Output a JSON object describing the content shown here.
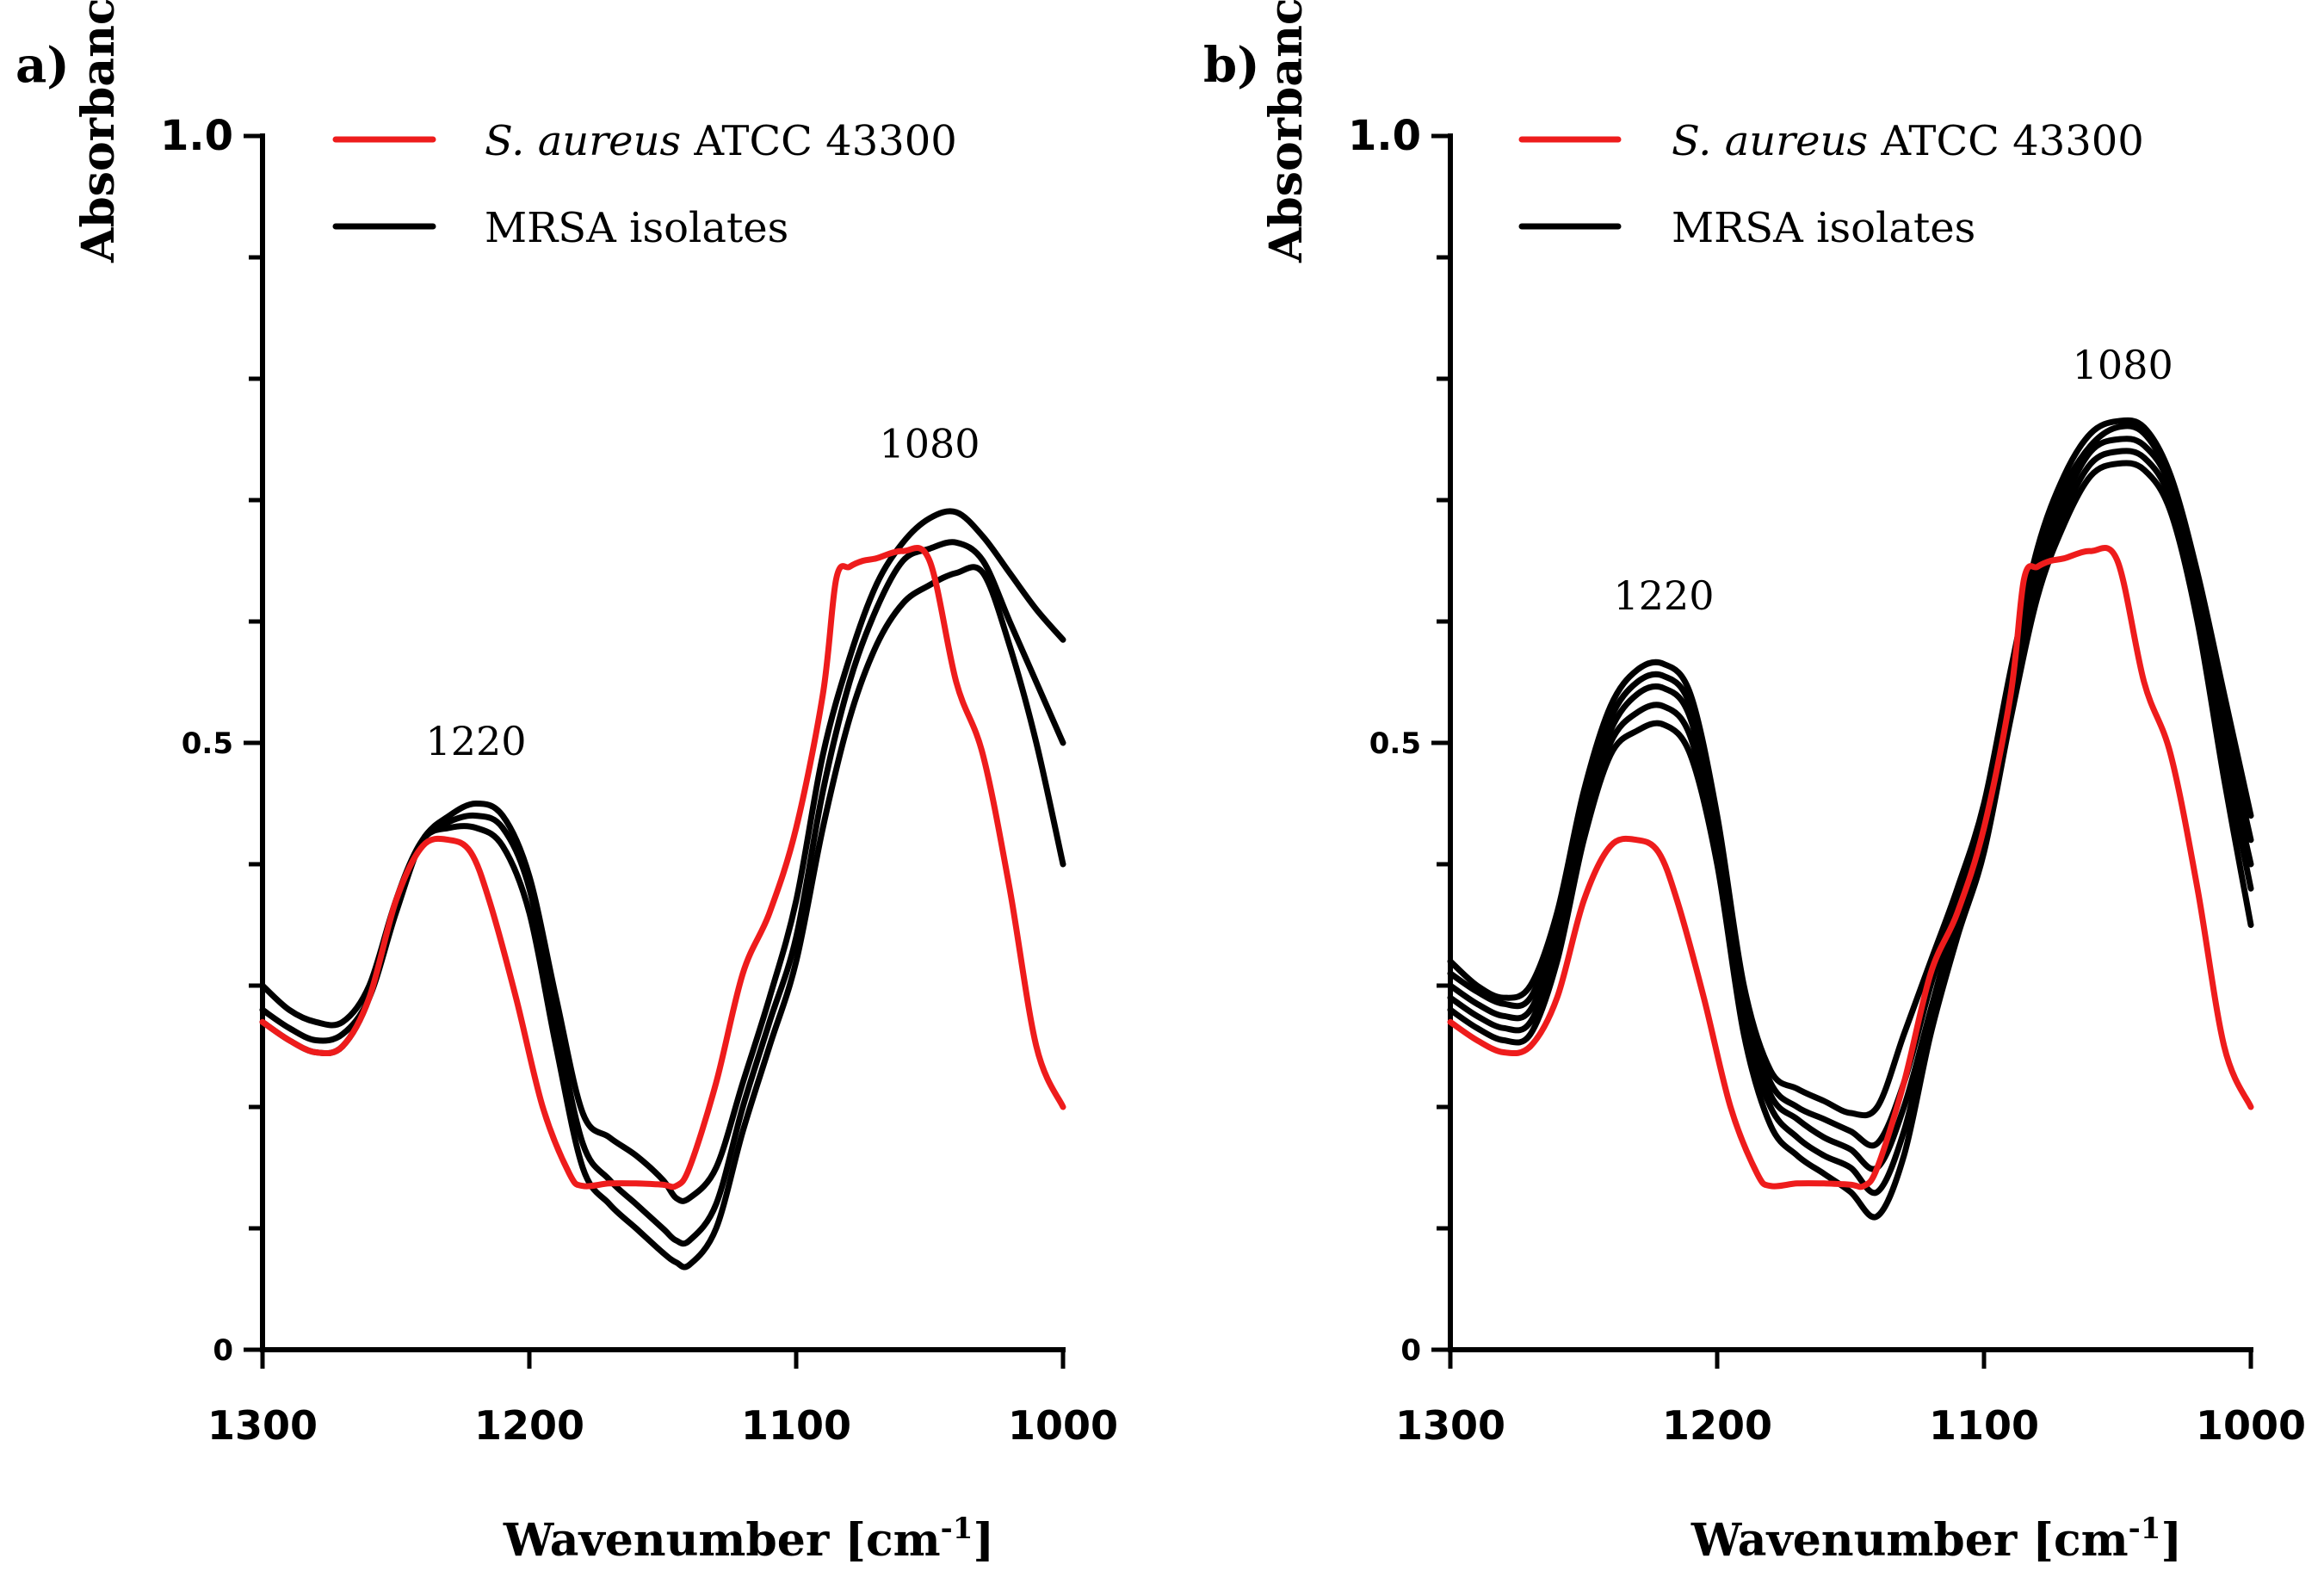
{
  "colors": {
    "reference": "#ee1c1c",
    "isolates": "#000000"
  },
  "chart_data": [
    {
      "type": "line",
      "panel_label": "a)",
      "xlabel": "Wavenumber [cm",
      "xlabel_sup": "-1",
      "xlabel_close": "]",
      "ylabel": "Absorbance",
      "xlim": [
        1300,
        1000
      ],
      "ylim": [
        0,
        1.0
      ],
      "x_ticks": [
        1300,
        1200,
        1100,
        1000
      ],
      "x_tick_labels": [
        "1300",
        "1200",
        "1100",
        "1000"
      ],
      "y_ticks_labeled": [
        {
          "value": 0,
          "label": "0"
        },
        {
          "value": 0.5,
          "label": "0.5"
        },
        {
          "value": 1.0,
          "label": "1.0"
        }
      ],
      "y_minor_step": 0.1,
      "legend": {
        "position": "top",
        "entries": [
          {
            "italic": "S. aureus",
            "text": " ATCC 43300",
            "color_key": "reference"
          },
          {
            "italic": "",
            "text": "MRSA isolates",
            "color_key": "isolates"
          }
        ]
      },
      "annotations": [
        {
          "text": "1220",
          "x": 1220,
          "y": 0.49
        },
        {
          "text": "1080",
          "x": 1050,
          "y": 0.735
        }
      ],
      "series": [
        {
          "name": "S. aureus ATCC 43300",
          "color_key": "reference",
          "x": [
            1300,
            1290,
            1280,
            1270,
            1260,
            1250,
            1240,
            1230,
            1222,
            1215,
            1205,
            1195,
            1185,
            1180,
            1170,
            1160,
            1150,
            1145,
            1140,
            1130,
            1120,
            1110,
            1100,
            1090,
            1085,
            1080,
            1075,
            1070,
            1060,
            1050,
            1040,
            1030,
            1020,
            1010,
            1000
          ],
          "y": [
            0.27,
            0.255,
            0.245,
            0.25,
            0.29,
            0.37,
            0.415,
            0.42,
            0.41,
            0.37,
            0.29,
            0.2,
            0.145,
            0.135,
            0.137,
            0.137,
            0.136,
            0.135,
            0.15,
            0.22,
            0.31,
            0.36,
            0.43,
            0.54,
            0.635,
            0.645,
            0.65,
            0.652,
            0.658,
            0.65,
            0.55,
            0.49,
            0.38,
            0.25,
            0.2
          ]
        },
        {
          "name": "MRSA isolate 1",
          "color_key": "isolates",
          "x": [
            1300,
            1290,
            1280,
            1270,
            1260,
            1250,
            1240,
            1230,
            1220,
            1210,
            1200,
            1190,
            1180,
            1170,
            1160,
            1150,
            1145,
            1140,
            1130,
            1120,
            1110,
            1100,
            1090,
            1080,
            1070,
            1060,
            1050,
            1040,
            1030,
            1020,
            1010,
            1000
          ],
          "y": [
            0.3,
            0.28,
            0.27,
            0.27,
            0.3,
            0.37,
            0.42,
            0.44,
            0.45,
            0.44,
            0.39,
            0.29,
            0.195,
            0.175,
            0.16,
            0.14,
            0.125,
            0.125,
            0.15,
            0.22,
            0.29,
            0.37,
            0.49,
            0.57,
            0.63,
            0.665,
            0.685,
            0.69,
            0.67,
            0.64,
            0.61,
            0.585
          ]
        },
        {
          "name": "MRSA isolate 2",
          "color_key": "isolates",
          "x": [
            1300,
            1290,
            1280,
            1270,
            1260,
            1250,
            1240,
            1230,
            1220,
            1210,
            1200,
            1190,
            1180,
            1170,
            1160,
            1150,
            1145,
            1140,
            1130,
            1120,
            1110,
            1100,
            1090,
            1080,
            1070,
            1060,
            1050,
            1040,
            1030,
            1020,
            1010,
            1000
          ],
          "y": [
            0.28,
            0.265,
            0.255,
            0.26,
            0.29,
            0.36,
            0.42,
            0.435,
            0.44,
            0.43,
            0.38,
            0.27,
            0.17,
            0.14,
            0.12,
            0.1,
            0.09,
            0.09,
            0.12,
            0.2,
            0.27,
            0.34,
            0.46,
            0.55,
            0.61,
            0.65,
            0.66,
            0.665,
            0.65,
            0.6,
            0.55,
            0.5
          ]
        },
        {
          "name": "MRSA isolate 3",
          "color_key": "isolates",
          "x": [
            1300,
            1290,
            1280,
            1270,
            1260,
            1250,
            1240,
            1230,
            1220,
            1210,
            1200,
            1190,
            1180,
            1170,
            1160,
            1150,
            1145,
            1140,
            1130,
            1120,
            1110,
            1100,
            1090,
            1080,
            1070,
            1060,
            1050,
            1040,
            1030,
            1020,
            1010,
            1000
          ],
          "y": [
            0.27,
            0.255,
            0.245,
            0.25,
            0.29,
            0.37,
            0.42,
            0.43,
            0.43,
            0.415,
            0.36,
            0.25,
            0.15,
            0.12,
            0.1,
            0.08,
            0.072,
            0.07,
            0.1,
            0.18,
            0.25,
            0.32,
            0.43,
            0.52,
            0.58,
            0.615,
            0.63,
            0.64,
            0.64,
            0.58,
            0.5,
            0.4
          ]
        }
      ]
    },
    {
      "type": "line",
      "panel_label": "b)",
      "xlabel": "Wavenumber [cm",
      "xlabel_sup": "-1",
      "xlabel_close": "]",
      "ylabel": "Absorbance",
      "xlim": [
        1300,
        1000
      ],
      "ylim": [
        0,
        1.0
      ],
      "x_ticks": [
        1300,
        1200,
        1100,
        1000
      ],
      "x_tick_labels": [
        "1300",
        "1200",
        "1100",
        "1000"
      ],
      "y_ticks_labeled": [
        {
          "value": 0,
          "label": "0"
        },
        {
          "value": 0.5,
          "label": "0.5"
        },
        {
          "value": 1.0,
          "label": "1.0"
        }
      ],
      "y_minor_step": 0.1,
      "legend": {
        "position": "top",
        "entries": [
          {
            "italic": "S. aureus",
            "text": " ATCC 43300",
            "color_key": "reference"
          },
          {
            "italic": "",
            "text": "MRSA isolates",
            "color_key": "isolates"
          }
        ]
      },
      "annotations": [
        {
          "text": "1220",
          "x": 1220,
          "y": 0.61
        },
        {
          "text": "1080",
          "x": 1048,
          "y": 0.8
        }
      ],
      "series": [
        {
          "name": "S. aureus ATCC 43300",
          "color_key": "reference",
          "x": [
            1300,
            1290,
            1280,
            1270,
            1260,
            1250,
            1240,
            1230,
            1222,
            1215,
            1205,
            1195,
            1185,
            1180,
            1170,
            1160,
            1150,
            1145,
            1140,
            1130,
            1120,
            1110,
            1100,
            1090,
            1085,
            1080,
            1075,
            1070,
            1060,
            1050,
            1040,
            1030,
            1020,
            1010,
            1000
          ],
          "y": [
            0.27,
            0.255,
            0.245,
            0.25,
            0.29,
            0.37,
            0.415,
            0.42,
            0.41,
            0.37,
            0.29,
            0.2,
            0.145,
            0.135,
            0.137,
            0.137,
            0.136,
            0.135,
            0.15,
            0.22,
            0.31,
            0.36,
            0.43,
            0.54,
            0.635,
            0.645,
            0.65,
            0.652,
            0.658,
            0.65,
            0.55,
            0.49,
            0.38,
            0.25,
            0.2
          ]
        },
        {
          "name": "MRSA isolate 1",
          "color_key": "isolates",
          "x": [
            1300,
            1290,
            1280,
            1270,
            1260,
            1250,
            1240,
            1230,
            1220,
            1210,
            1200,
            1190,
            1180,
            1170,
            1160,
            1150,
            1140,
            1130,
            1120,
            1110,
            1100,
            1090,
            1080,
            1070,
            1060,
            1050,
            1040,
            1030,
            1020,
            1010,
            1000
          ],
          "y": [
            0.32,
            0.3,
            0.29,
            0.3,
            0.36,
            0.46,
            0.53,
            0.56,
            0.565,
            0.54,
            0.44,
            0.3,
            0.23,
            0.215,
            0.205,
            0.195,
            0.2,
            0.26,
            0.32,
            0.38,
            0.45,
            0.56,
            0.66,
            0.72,
            0.755,
            0.765,
            0.76,
            0.72,
            0.64,
            0.54,
            0.44
          ]
        },
        {
          "name": "MRSA isolate 2",
          "color_key": "isolates",
          "x": [
            1300,
            1290,
            1280,
            1270,
            1260,
            1250,
            1240,
            1230,
            1220,
            1210,
            1200,
            1190,
            1180,
            1170,
            1160,
            1150,
            1140,
            1130,
            1120,
            1110,
            1100,
            1090,
            1080,
            1070,
            1060,
            1050,
            1040,
            1030,
            1020,
            1010,
            1000
          ],
          "y": [
            0.31,
            0.295,
            0.285,
            0.29,
            0.35,
            0.45,
            0.52,
            0.55,
            0.555,
            0.53,
            0.43,
            0.29,
            0.22,
            0.2,
            0.19,
            0.18,
            0.17,
            0.22,
            0.3,
            0.37,
            0.44,
            0.55,
            0.65,
            0.71,
            0.745,
            0.76,
            0.755,
            0.715,
            0.63,
            0.52,
            0.42
          ]
        },
        {
          "name": "MRSA isolate 3",
          "color_key": "isolates",
          "x": [
            1300,
            1290,
            1280,
            1270,
            1260,
            1250,
            1240,
            1230,
            1220,
            1210,
            1200,
            1190,
            1180,
            1170,
            1160,
            1150,
            1140,
            1130,
            1120,
            1110,
            1100,
            1090,
            1080,
            1070,
            1060,
            1050,
            1040,
            1030,
            1020,
            1010,
            1000
          ],
          "y": [
            0.3,
            0.285,
            0.275,
            0.28,
            0.34,
            0.44,
            0.51,
            0.54,
            0.545,
            0.52,
            0.42,
            0.28,
            0.21,
            0.19,
            0.175,
            0.165,
            0.15,
            0.2,
            0.28,
            0.36,
            0.43,
            0.54,
            0.64,
            0.7,
            0.74,
            0.75,
            0.745,
            0.71,
            0.62,
            0.5,
            0.4
          ]
        },
        {
          "name": "MRSA isolate 4",
          "color_key": "isolates",
          "x": [
            1300,
            1290,
            1280,
            1270,
            1260,
            1250,
            1240,
            1230,
            1220,
            1210,
            1200,
            1190,
            1180,
            1170,
            1160,
            1150,
            1140,
            1130,
            1120,
            1110,
            1100,
            1090,
            1080,
            1070,
            1060,
            1050,
            1040,
            1030,
            1020,
            1010,
            1000
          ],
          "y": [
            0.29,
            0.275,
            0.265,
            0.27,
            0.33,
            0.43,
            0.5,
            0.525,
            0.53,
            0.505,
            0.41,
            0.27,
            0.2,
            0.175,
            0.16,
            0.15,
            0.13,
            0.18,
            0.27,
            0.35,
            0.42,
            0.53,
            0.63,
            0.69,
            0.73,
            0.74,
            0.735,
            0.7,
            0.61,
            0.49,
            0.38
          ]
        },
        {
          "name": "MRSA isolate 5",
          "color_key": "isolates",
          "x": [
            1300,
            1290,
            1280,
            1270,
            1260,
            1250,
            1240,
            1230,
            1220,
            1210,
            1200,
            1190,
            1180,
            1170,
            1160,
            1150,
            1140,
            1130,
            1120,
            1110,
            1100,
            1090,
            1080,
            1070,
            1060,
            1050,
            1040,
            1030,
            1020,
            1010,
            1000
          ],
          "y": [
            0.28,
            0.265,
            0.255,
            0.26,
            0.32,
            0.42,
            0.49,
            0.51,
            0.515,
            0.49,
            0.4,
            0.26,
            0.185,
            0.16,
            0.145,
            0.13,
            0.11,
            0.16,
            0.26,
            0.34,
            0.41,
            0.52,
            0.62,
            0.68,
            0.72,
            0.73,
            0.725,
            0.69,
            0.6,
            0.47,
            0.35
          ]
        }
      ]
    }
  ]
}
